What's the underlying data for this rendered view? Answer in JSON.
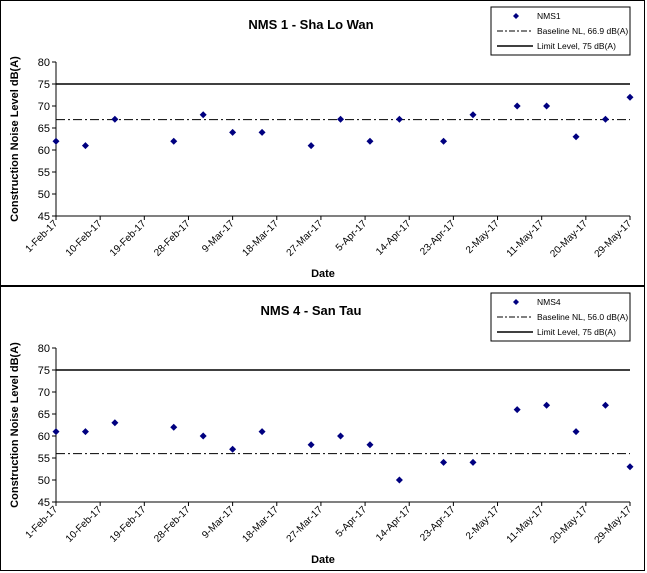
{
  "chart_data": [
    {
      "type": "scatter",
      "title": "NMS 1 - Sha Lo Wan",
      "xlabel": "Date",
      "ylabel": "Construction Noise Level  dB(A)",
      "ylim": [
        45,
        80
      ],
      "yticks": [
        "45",
        "50",
        "55",
        "60",
        "65",
        "70",
        "75",
        "80"
      ],
      "xlim": [
        "2017-02-01",
        "2017-05-29"
      ],
      "xticks": [
        "1-Feb-17",
        "10-Feb-17",
        "19-Feb-17",
        "28-Feb-17",
        "9-Mar-17",
        "18-Mar-17",
        "27-Mar-17",
        "5-Apr-17",
        "14-Apr-17",
        "23-Apr-17",
        "2-May-17",
        "11-May-17",
        "20-May-17",
        "29-May-17"
      ],
      "grid": false,
      "legend_position": "top-right",
      "series": [
        {
          "name": "NMS1",
          "type": "scatter",
          "color": "#000080",
          "x": [
            "2017-02-01",
            "2017-02-07",
            "2017-02-13",
            "2017-02-25",
            "2017-03-03",
            "2017-03-09",
            "2017-03-15",
            "2017-03-25",
            "2017-03-31",
            "2017-04-06",
            "2017-04-12",
            "2017-04-21",
            "2017-04-27",
            "2017-05-06",
            "2017-05-12",
            "2017-05-18",
            "2017-05-24",
            "2017-05-29"
          ],
          "y": [
            62,
            61,
            67,
            62,
            68,
            64,
            64,
            61,
            67,
            62,
            67,
            62,
            68,
            70,
            70,
            63,
            67,
            72
          ]
        },
        {
          "name": "Baseline NL, 66.9 dB(A)",
          "type": "line",
          "style": "dash-dot",
          "color": "#000000",
          "value": 66.9
        },
        {
          "name": "Limit Level, 75 dB(A)",
          "type": "line",
          "style": "solid",
          "color": "#000000",
          "value": 75
        }
      ]
    },
    {
      "type": "scatter",
      "title": "NMS 4 - San Tau",
      "xlabel": "Date",
      "ylabel": "Construction Noise Level  dB(A)",
      "ylim": [
        45,
        80
      ],
      "yticks": [
        "45",
        "50",
        "55",
        "60",
        "65",
        "70",
        "75",
        "80"
      ],
      "xlim": [
        "2017-02-01",
        "2017-05-29"
      ],
      "xticks": [
        "1-Feb-17",
        "10-Feb-17",
        "19-Feb-17",
        "28-Feb-17",
        "9-Mar-17",
        "18-Mar-17",
        "27-Mar-17",
        "5-Apr-17",
        "14-Apr-17",
        "23-Apr-17",
        "2-May-17",
        "11-May-17",
        "20-May-17",
        "29-May-17"
      ],
      "grid": false,
      "legend_position": "top-right",
      "series": [
        {
          "name": "NMS4",
          "type": "scatter",
          "color": "#000080",
          "x": [
            "2017-02-01",
            "2017-02-07",
            "2017-02-13",
            "2017-02-25",
            "2017-03-03",
            "2017-03-09",
            "2017-03-15",
            "2017-03-25",
            "2017-03-31",
            "2017-04-06",
            "2017-04-12",
            "2017-04-21",
            "2017-04-27",
            "2017-05-06",
            "2017-05-12",
            "2017-05-18",
            "2017-05-24",
            "2017-05-29"
          ],
          "y": [
            61,
            61,
            63,
            62,
            60,
            57,
            61,
            58,
            60,
            58,
            50,
            54,
            54,
            66,
            67,
            61,
            67,
            53
          ]
        },
        {
          "name": "Baseline NL, 56.0 dB(A)",
          "type": "line",
          "style": "dash-dot",
          "color": "#000000",
          "value": 56.0
        },
        {
          "name": "Limit Level, 75 dB(A)",
          "type": "line",
          "style": "solid",
          "color": "#000000",
          "value": 75
        }
      ]
    }
  ]
}
